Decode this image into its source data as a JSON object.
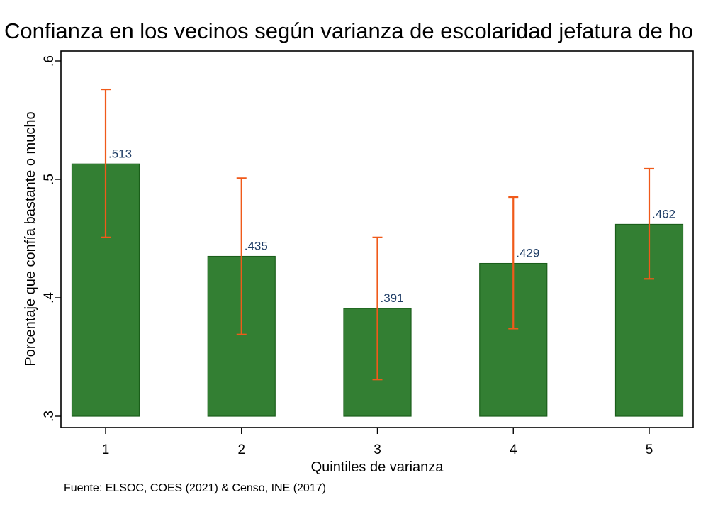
{
  "chart_data": {
    "type": "bar",
    "title": "Confianza en los vecinos según varianza de escolaridad jefatura de ho",
    "xlabel": "Quintiles de varianza",
    "ylabel": "Porcentaje que confía bastante o mucho",
    "categories": [
      "1",
      "2",
      "3",
      "4",
      "5"
    ],
    "values": [
      0.513,
      0.435,
      0.391,
      0.429,
      0.462
    ],
    "value_labels": [
      ".513",
      ".435",
      ".391",
      ".429",
      ".462"
    ],
    "ci_low": [
      0.451,
      0.369,
      0.331,
      0.374,
      0.416
    ],
    "ci_high": [
      0.576,
      0.501,
      0.451,
      0.485,
      0.509
    ],
    "ylim": [
      0.3,
      0.6
    ],
    "yticks": [
      0.3,
      0.4,
      0.5,
      0.6
    ],
    "ytick_labels": [
      ".3",
      ".4",
      ".5",
      ".6"
    ],
    "bar_base": 0.3,
    "grid": false,
    "legend": "none",
    "colors": {
      "bar_fill": "#337f33",
      "bar_stroke": "#1a5e1a",
      "error_bar": "#f05a1a",
      "data_label": "#1f3d66"
    },
    "source": "Fuente: ELSOC, COES (2021) & Censo, INE (2017)"
  }
}
